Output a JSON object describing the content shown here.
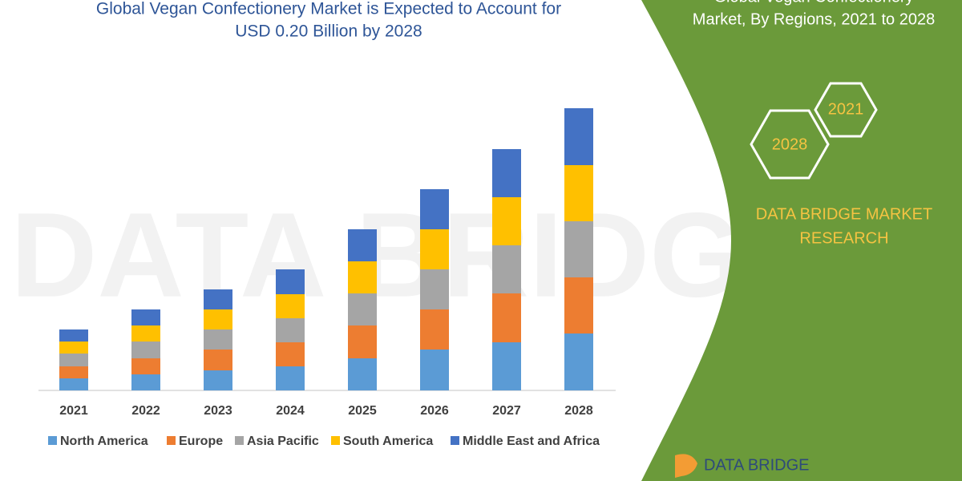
{
  "chart_data": {
    "type": "bar",
    "stacked": true,
    "title": [
      "Global Vegan Confectionery Market is Expected to Account for",
      "USD 0.20 Billion by 2028"
    ],
    "categories": [
      "2021",
      "2022",
      "2023",
      "2024",
      "2025",
      "2026",
      "2027",
      "2028"
    ],
    "series": [
      {
        "name": "North America",
        "color": "#5b9bd5",
        "values": [
          15,
          20,
          25,
          30,
          40,
          51,
          60,
          71
        ]
      },
      {
        "name": "Europe",
        "color": "#ed7d31",
        "values": [
          15,
          20,
          26,
          30,
          41,
          50,
          61,
          70
        ]
      },
      {
        "name": "Asia Pacific",
        "color": "#a5a5a5",
        "values": [
          16,
          21,
          25,
          30,
          40,
          50,
          60,
          70
        ]
      },
      {
        "name": "South America",
        "color": "#ffc000",
        "values": [
          15,
          20,
          25,
          30,
          40,
          50,
          60,
          70
        ]
      },
      {
        "name": "Middle East and Africa",
        "color": "#4472c4",
        "values": [
          15,
          20,
          25,
          31,
          40,
          50,
          60,
          71
        ]
      }
    ]
  },
  "side_panel": {
    "heading": [
      "Global Vegan Confectionery",
      "Market, By Regions, 2021 to 2028"
    ],
    "hexagons": [
      "2021",
      "2028"
    ],
    "brand": [
      "DATA BRIDGE MARKET",
      "RESEARCH"
    ],
    "logo": "DATA BRIDGE"
  }
}
